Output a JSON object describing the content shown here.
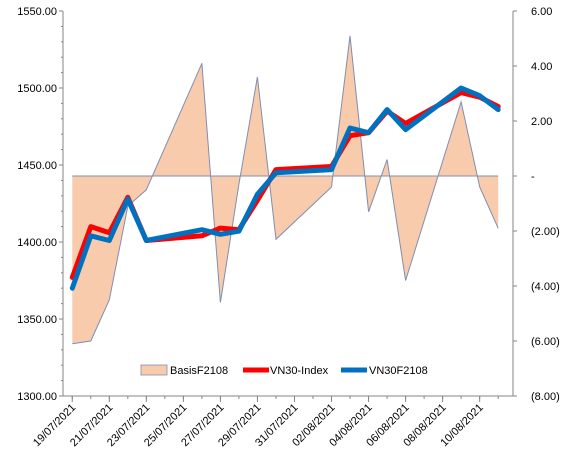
{
  "chart_data": {
    "type": "line",
    "categories": [
      "19/07/2021",
      "20/07/2021",
      "21/07/2021",
      "22/07/2021",
      "23/07/2021",
      "26/07/2021",
      "27/07/2021",
      "28/07/2021",
      "29/07/2021",
      "30/07/2021",
      "02/08/2021",
      "03/08/2021",
      "04/08/2021",
      "05/08/2021",
      "06/08/2021",
      "09/08/2021",
      "10/08/2021",
      "11/08/2021"
    ],
    "x_tick_labels": [
      "19/07/2021",
      "21/07/2021",
      "23/07/2021",
      "25/07/2021",
      "27/07/2021",
      "29/07/2021",
      "31/07/2021",
      "02/08/2021",
      "04/08/2021",
      "06/08/2021",
      "08/08/2021",
      "10/08/2021"
    ],
    "y_left": {
      "min": 1300,
      "max": 1550,
      "step": 50,
      "tick_labels": [
        "1300.00",
        "1350.00",
        "1400.00",
        "1450.00",
        "1500.00",
        "1550.00"
      ]
    },
    "y_right": {
      "min": -8,
      "max": 6,
      "step": 2,
      "tick_labels": [
        "(8.00)",
        "(6.00)",
        "(4.00)",
        "(2.00)",
        "-",
        "2.00",
        "4.00",
        "6.00"
      ]
    },
    "series": [
      {
        "name": "BasisF2108",
        "type": "area",
        "axis": "right",
        "color": "#f8cbad",
        "edge_color": "#7f8fb0",
        "points": [
          {
            "date": "19/07/2021",
            "value": -6.1
          },
          {
            "date": "20/07/2021",
            "value": -6.0
          },
          {
            "date": "21/07/2021",
            "value": -4.5
          },
          {
            "date": "22/07/2021",
            "value": -1.1
          },
          {
            "date": "23/07/2021",
            "value": -0.5
          },
          {
            "date": "26/07/2021",
            "value": 4.1
          },
          {
            "date": "27/07/2021",
            "value": -4.6
          },
          {
            "date": "28/07/2021",
            "value": -0.3
          },
          {
            "date": "29/07/2021",
            "value": 3.6
          },
          {
            "date": "30/07/2021",
            "value": -2.3
          },
          {
            "date": "02/08/2021",
            "value": -0.4
          },
          {
            "date": "03/08/2021",
            "value": 5.1
          },
          {
            "date": "04/08/2021",
            "value": -1.3
          },
          {
            "date": "05/08/2021",
            "value": 0.6
          },
          {
            "date": "06/08/2021",
            "value": -3.8
          },
          {
            "date": "09/08/2021",
            "value": 2.7
          },
          {
            "date": "10/08/2021",
            "value": -0.4
          },
          {
            "date": "11/08/2021",
            "value": -1.9
          }
        ]
      },
      {
        "name": "VN30-Index",
        "type": "line",
        "axis": "left",
        "color": "#ff0000",
        "points": [
          {
            "date": "19/07/2021",
            "value": 1377
          },
          {
            "date": "20/07/2021",
            "value": 1410
          },
          {
            "date": "21/07/2021",
            "value": 1406
          },
          {
            "date": "22/07/2021",
            "value": 1429
          },
          {
            "date": "23/07/2021",
            "value": 1401
          },
          {
            "date": "26/07/2021",
            "value": 1404
          },
          {
            "date": "27/07/2021",
            "value": 1409
          },
          {
            "date": "28/07/2021",
            "value": 1408
          },
          {
            "date": "29/07/2021",
            "value": 1427
          },
          {
            "date": "30/07/2021",
            "value": 1447
          },
          {
            "date": "02/08/2021",
            "value": 1449
          },
          {
            "date": "03/08/2021",
            "value": 1469
          },
          {
            "date": "04/08/2021",
            "value": 1471
          },
          {
            "date": "05/08/2021",
            "value": 1485
          },
          {
            "date": "06/08/2021",
            "value": 1477
          },
          {
            "date": "09/08/2021",
            "value": 1497
          },
          {
            "date": "10/08/2021",
            "value": 1494
          },
          {
            "date": "11/08/2021",
            "value": 1488
          }
        ]
      },
      {
        "name": "VN30F2108",
        "type": "line",
        "axis": "left",
        "color": "#0070c0",
        "points": [
          {
            "date": "19/07/2021",
            "value": 1370
          },
          {
            "date": "20/07/2021",
            "value": 1404
          },
          {
            "date": "21/07/2021",
            "value": 1401
          },
          {
            "date": "22/07/2021",
            "value": 1428
          },
          {
            "date": "23/07/2021",
            "value": 1401
          },
          {
            "date": "26/07/2021",
            "value": 1408
          },
          {
            "date": "27/07/2021",
            "value": 1405
          },
          {
            "date": "28/07/2021",
            "value": 1407
          },
          {
            "date": "29/07/2021",
            "value": 1431
          },
          {
            "date": "30/07/2021",
            "value": 1445
          },
          {
            "date": "02/08/2021",
            "value": 1447
          },
          {
            "date": "03/08/2021",
            "value": 1474
          },
          {
            "date": "04/08/2021",
            "value": 1471
          },
          {
            "date": "05/08/2021",
            "value": 1486
          },
          {
            "date": "06/08/2021",
            "value": 1473
          },
          {
            "date": "09/08/2021",
            "value": 1500
          },
          {
            "date": "10/08/2021",
            "value": 1495
          },
          {
            "date": "11/08/2021",
            "value": 1486
          }
        ]
      }
    ],
    "legend_position": "bottom-center",
    "grid": false
  }
}
